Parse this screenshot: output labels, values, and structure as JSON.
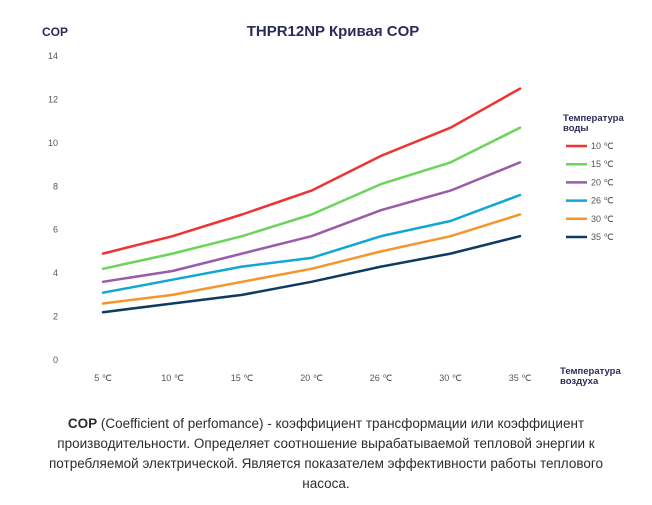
{
  "chart_data": {
    "type": "line",
    "title": "THPR12NP Кривая COP",
    "ylabel": "COP",
    "xlabel_lines": [
      "Температура",
      "воздуха"
    ],
    "legend_title_lines": [
      "Температура",
      "воды"
    ],
    "legend_position": "right",
    "grid": false,
    "categories": [
      "5 ℃",
      "10 ℃",
      "15 ℃",
      "20 ℃",
      "26 ℃",
      "30 ℃",
      "35 ℃"
    ],
    "ylim": [
      0,
      14
    ],
    "yticks": [
      0,
      2,
      4,
      6,
      8,
      10,
      12,
      14
    ],
    "series": [
      {
        "name": "10 ℃",
        "color": "#ee3333",
        "values": [
          4.9,
          5.7,
          6.7,
          7.8,
          9.4,
          10.7,
          12.5
        ]
      },
      {
        "name": "15 ℃",
        "color": "#6cd45a",
        "values": [
          4.2,
          4.9,
          5.7,
          6.7,
          8.1,
          9.1,
          10.7
        ]
      },
      {
        "name": "20 ℃",
        "color": "#9a5ba8",
        "values": [
          3.6,
          4.1,
          4.9,
          5.7,
          6.9,
          7.8,
          9.1
        ]
      },
      {
        "name": "26 ℃",
        "color": "#12a6d4",
        "values": [
          3.1,
          3.7,
          4.3,
          4.7,
          5.7,
          6.4,
          7.6
        ]
      },
      {
        "name": "30 ℃",
        "color": "#f5952c",
        "values": [
          2.6,
          3.0,
          3.6,
          4.2,
          5.0,
          5.7,
          6.7
        ]
      },
      {
        "name": "35 ℃",
        "color": "#0f3b63",
        "values": [
          2.2,
          2.6,
          3.0,
          3.6,
          4.3,
          4.9,
          5.7
        ]
      }
    ]
  },
  "caption": {
    "bold": "COP",
    "text": " (Coefficient of perfomance) - коэффициент трансформации или коэффициент производительности. Определяет соотношение вырабатываемой тепловой энергии к потребляемой электрической. Является показателем эффективности работы теплового насоса."
  }
}
